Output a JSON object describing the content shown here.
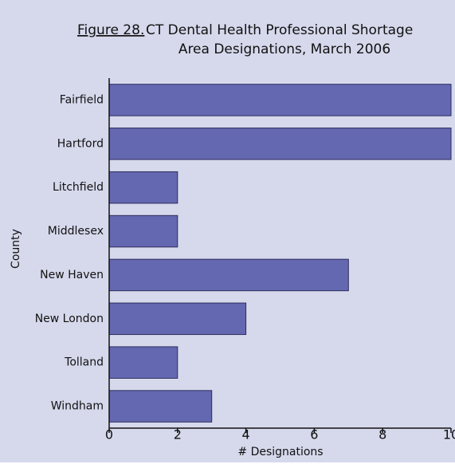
{
  "chart_data": {
    "type": "bar",
    "orientation": "horizontal",
    "figure_label": "Figure 28.",
    "title": [
      "CT Dental Health Professional Shortage",
      "Area Designations, March 2006"
    ],
    "x_label": "# Designations",
    "y_label": "County",
    "categories": [
      "Fairfield",
      "Hartford",
      "Litchfield",
      "Middlesex",
      "New Haven",
      "New London",
      "Tolland",
      "Windham"
    ],
    "values": [
      10,
      10,
      2,
      2,
      7,
      4,
      2,
      3
    ],
    "color": "#6468b0",
    "xlim": [
      0,
      10
    ],
    "xticks": [
      0,
      2,
      4,
      6,
      8,
      10
    ],
    "grid": false
  }
}
